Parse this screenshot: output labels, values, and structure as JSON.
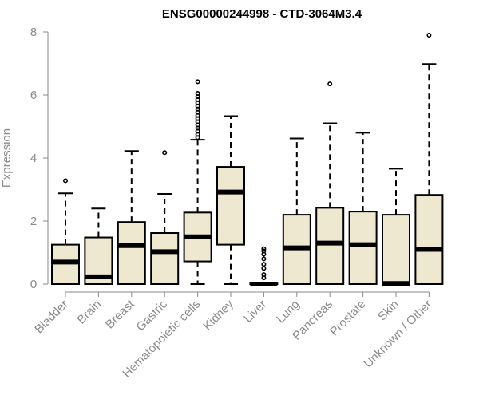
{
  "chart_data": {
    "type": "boxplot",
    "title": "ENSG00000244998 - CTD-3064M3.4",
    "xlabel": "",
    "ylabel": "Expression",
    "ylim": [
      0,
      8
    ],
    "yticks": [
      0,
      2,
      4,
      6,
      8
    ],
    "box_fill": "#efe8d0",
    "box_stroke": "#000000",
    "axis_color": "#8a8a8a",
    "grid": false,
    "categories": [
      "Bladder",
      "Brain",
      "Breast",
      "Gastric",
      "Hematopoietic cells",
      "Kidney",
      "Liver",
      "Lung",
      "Pancreas",
      "Prostate",
      "Skin",
      "Unknown / Other"
    ],
    "boxes": [
      {
        "category": "Bladder",
        "min": 0,
        "q1": 0,
        "median": 0.7,
        "q3": 1.25,
        "max": 2.88,
        "outliers": [
          3.28
        ]
      },
      {
        "category": "Brain",
        "min": 0,
        "q1": 0,
        "median": 0.23,
        "q3": 1.48,
        "max": 2.4,
        "outliers": []
      },
      {
        "category": "Breast",
        "min": 0,
        "q1": 0,
        "median": 1.22,
        "q3": 1.97,
        "max": 4.22,
        "outliers": []
      },
      {
        "category": "Gastric",
        "min": 0,
        "q1": 0,
        "median": 1.03,
        "q3": 1.62,
        "max": 2.86,
        "outliers": [
          4.17
        ]
      },
      {
        "category": "Hematopoietic cells",
        "min": 0,
        "q1": 0.72,
        "median": 1.5,
        "q3": 2.27,
        "max": 4.58,
        "outliers": [
          4.65,
          4.75,
          4.85,
          4.95,
          5.05,
          5.15,
          5.25,
          5.35,
          5.45,
          5.55,
          5.65,
          5.75,
          5.85,
          5.95,
          6.05,
          6.42
        ]
      },
      {
        "category": "Kidney",
        "min": 0,
        "q1": 1.25,
        "median": 2.92,
        "q3": 3.72,
        "max": 5.33,
        "outliers": []
      },
      {
        "category": "Liver",
        "min": 0,
        "q1": 0,
        "median": 0,
        "q3": 0.02,
        "max": 0.03,
        "outliers": [
          0.2,
          0.3,
          0.5,
          0.63,
          0.8,
          0.95,
          1.05,
          1.12
        ]
      },
      {
        "category": "Lung",
        "min": 0,
        "q1": 0,
        "median": 1.15,
        "q3": 2.2,
        "max": 4.62,
        "outliers": []
      },
      {
        "category": "Pancreas",
        "min": 0,
        "q1": 0,
        "median": 1.3,
        "q3": 2.42,
        "max": 5.1,
        "outliers": [
          6.35
        ]
      },
      {
        "category": "Prostate",
        "min": 0,
        "q1": 0,
        "median": 1.25,
        "q3": 2.3,
        "max": 4.8,
        "outliers": []
      },
      {
        "category": "Skin",
        "min": 0,
        "q1": 0,
        "median": 0.02,
        "q3": 2.2,
        "max": 3.66,
        "outliers": []
      },
      {
        "category": "Unknown / Other",
        "min": 0,
        "q1": 0,
        "median": 1.1,
        "q3": 2.83,
        "max": 6.98,
        "outliers": [
          7.9
        ]
      }
    ]
  }
}
